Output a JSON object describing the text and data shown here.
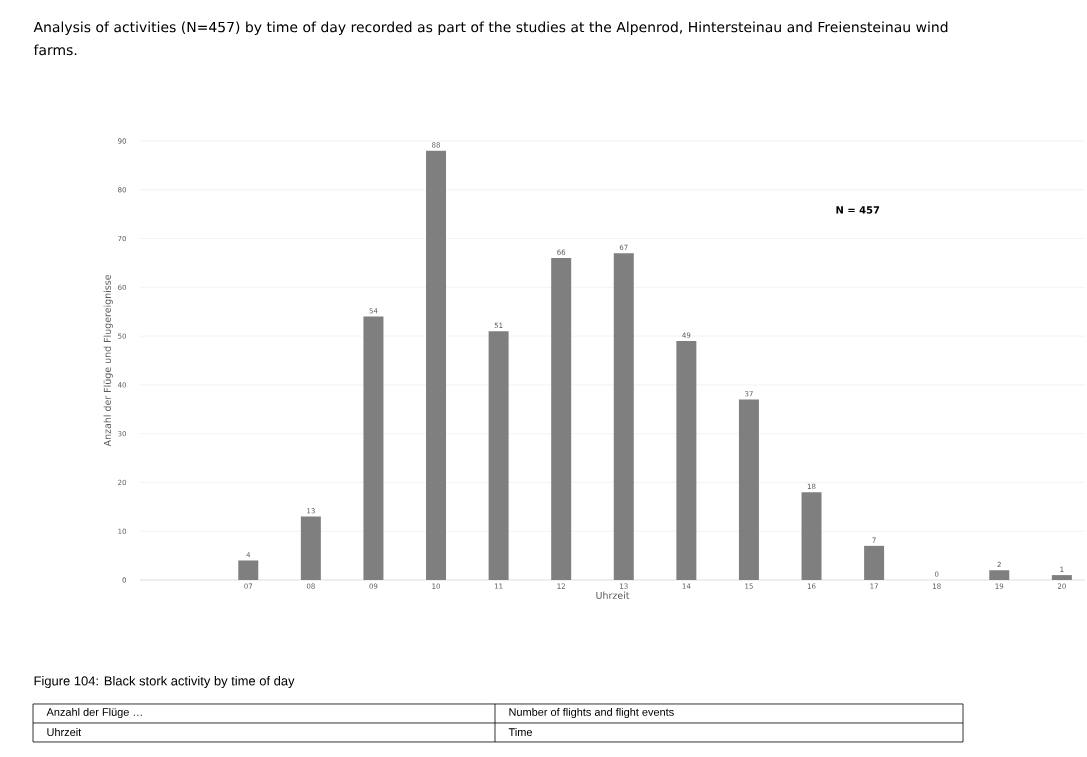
{
  "chart_data": {
    "type": "bar",
    "title": "Analysis of activities (N=457) by time of day recorded as part of the studies at the Alpenrod, Hintersteinau and Freiensteinau wind farms.",
    "xlabel": "Uhrzeit",
    "ylabel": "Anzahl der Flüge und Flugereignisse",
    "categories": [
      null,
      "07",
      "08",
      "09",
      "10",
      "11",
      "12",
      "13",
      "14",
      "15",
      "16",
      "17",
      "18",
      "19",
      "20"
    ],
    "values": [
      null,
      4,
      13,
      54,
      88,
      51,
      66,
      67,
      49,
      37,
      18,
      7,
      0,
      2,
      1
    ],
    "color": "#7f7f7f",
    "data_labels": true,
    "grid": "y",
    "ylim": [
      0,
      90
    ],
    "yticks": [
      0,
      10,
      20,
      30,
      40,
      50,
      60,
      70,
      80,
      90
    ],
    "annotations": [
      "N = 457",
      "Figure 104: Black stork activity by time of day",
      "Anzahl der Flüge …",
      "Number of flights and flight events",
      "Uhrzeit",
      "Time"
    ]
  }
}
